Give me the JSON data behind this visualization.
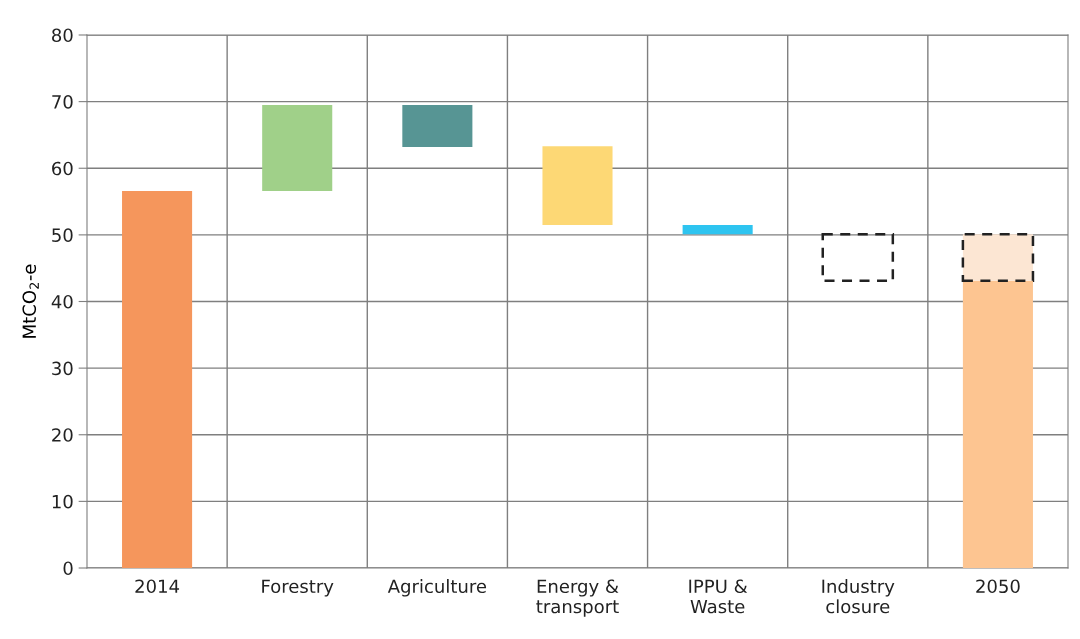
{
  "chart_data": {
    "type": "bar",
    "ylabel": "MtCO$_{2}$-e",
    "categories": [
      "2014",
      "Forestry",
      "Agriculture",
      "Energy &\ntransport",
      "IPPU &\nWaste",
      "Industry\nclosure",
      "2050"
    ],
    "series": [
      {
        "colors": [
          "#f5965c",
          "#a0d089",
          "#579594",
          "#fdd875",
          "#2ec4f0",
          null,
          "#fdc591"
        ],
        "base": [
          0,
          56.6,
          69.5,
          63.3,
          51.5,
          null,
          0
        ],
        "values": [
          56.6,
          12.9,
          -6.3,
          -11.8,
          -1.4,
          null,
          43.1
        ]
      },
      {
        "color": "#222222",
        "line_style": "dashed",
        "colors": [
          null,
          null,
          null,
          null,
          null,
          null,
          "#fce6d3"
        ],
        "base": [
          null,
          null,
          null,
          null,
          null,
          50.1,
          43.1
        ],
        "values": [
          null,
          null,
          null,
          null,
          null,
          -7.0,
          7.0
        ]
      }
    ],
    "ylim": [
      0,
      80
    ],
    "yticks": [
      0,
      10,
      20,
      30,
      40,
      50,
      60,
      70,
      80
    ],
    "grid": true
  }
}
